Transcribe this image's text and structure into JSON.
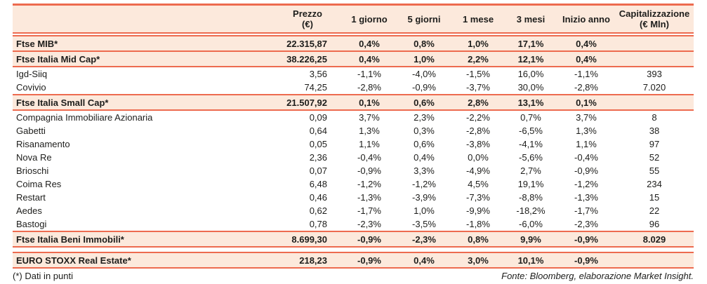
{
  "colors": {
    "accent": "#ed6b4f",
    "band": "#fce9dc",
    "text": "#1d1d1b"
  },
  "table": {
    "columns": [
      {
        "label": ""
      },
      {
        "label": "Prezzo",
        "sub": "(€)"
      },
      {
        "label": "1 giorno"
      },
      {
        "label": "5 giorni"
      },
      {
        "label": "1 mese"
      },
      {
        "label": "3 mesi"
      },
      {
        "label": "Inizio anno"
      },
      {
        "label": "Capitalizzazione",
        "sub": "(€ Mln)"
      }
    ],
    "rows": [
      {
        "type": "index",
        "name": "Ftse MIB*",
        "price": "22.315,87",
        "d1": "0,4%",
        "d5": "0,8%",
        "m1": "1,0%",
        "m3": "17,1%",
        "ytd": "0,4%",
        "cap": ""
      },
      {
        "type": "index",
        "name": "Ftse Italia Mid Cap*",
        "price": "38.226,25",
        "d1": "0,4%",
        "d5": "1,0%",
        "m1": "2,2%",
        "m3": "12,1%",
        "ytd": "0,4%",
        "cap": ""
      },
      {
        "type": "stock",
        "name": "Igd-Siiq",
        "price": "3,56",
        "d1": "-1,1%",
        "d5": "-4,0%",
        "m1": "-1,5%",
        "m3": "16,0%",
        "ytd": "-1,1%",
        "cap": "393"
      },
      {
        "type": "stock",
        "name": "Covivio",
        "price": "74,25",
        "d1": "-2,8%",
        "d5": "-0,9%",
        "m1": "-3,7%",
        "m3": "30,0%",
        "ytd": "-2,8%",
        "cap": "7.020"
      },
      {
        "type": "index",
        "name": "Ftse Italia Small Cap*",
        "price": "21.507,92",
        "d1": "0,1%",
        "d5": "0,6%",
        "m1": "2,8%",
        "m3": "13,1%",
        "ytd": "0,1%",
        "cap": ""
      },
      {
        "type": "stock",
        "name": "Compagnia Immobiliare Azionaria",
        "price": "0,09",
        "d1": "3,7%",
        "d5": "2,3%",
        "m1": "-2,2%",
        "m3": "0,7%",
        "ytd": "3,7%",
        "cap": "8"
      },
      {
        "type": "stock",
        "name": "Gabetti",
        "price": "0,64",
        "d1": "1,3%",
        "d5": "0,3%",
        "m1": "-2,8%",
        "m3": "-6,5%",
        "ytd": "1,3%",
        "cap": "38"
      },
      {
        "type": "stock",
        "name": "Risanamento",
        "price": "0,05",
        "d1": "1,1%",
        "d5": "0,6%",
        "m1": "-3,8%",
        "m3": "-4,1%",
        "ytd": "1,1%",
        "cap": "97"
      },
      {
        "type": "stock",
        "name": "Nova Re",
        "price": "2,36",
        "d1": "-0,4%",
        "d5": "0,4%",
        "m1": "0,0%",
        "m3": "-5,6%",
        "ytd": "-0,4%",
        "cap": "52"
      },
      {
        "type": "stock",
        "name": "Brioschi",
        "price": "0,07",
        "d1": "-0,9%",
        "d5": "3,3%",
        "m1": "-4,9%",
        "m3": "2,7%",
        "ytd": "-0,9%",
        "cap": "55"
      },
      {
        "type": "stock",
        "name": "Coima Res",
        "price": "6,48",
        "d1": "-1,2%",
        "d5": "-1,2%",
        "m1": "4,5%",
        "m3": "19,1%",
        "ytd": "-1,2%",
        "cap": "234"
      },
      {
        "type": "stock",
        "name": "Restart",
        "price": "0,46",
        "d1": "-1,3%",
        "d5": "-3,9%",
        "m1": "-7,3%",
        "m3": "-8,8%",
        "ytd": "-1,3%",
        "cap": "15"
      },
      {
        "type": "stock",
        "name": "Aedes",
        "price": "0,62",
        "d1": "-1,7%",
        "d5": "1,0%",
        "m1": "-9,9%",
        "m3": "-18,2%",
        "ytd": "-1,7%",
        "cap": "22"
      },
      {
        "type": "stock",
        "name": "Bastogi",
        "price": "0,78",
        "d1": "-2,3%",
        "d5": "-3,5%",
        "m1": "-1,8%",
        "m3": "-6,0%",
        "ytd": "-2,3%",
        "cap": "96"
      },
      {
        "type": "index",
        "name": "Ftse Italia Beni Immobili*",
        "price": "8.699,30",
        "d1": "-0,9%",
        "d5": "-2,3%",
        "m1": "0,8%",
        "m3": "9,9%",
        "ytd": "-0,9%",
        "cap": "8.029"
      },
      {
        "type": "spacer"
      },
      {
        "type": "index",
        "name": "EURO STOXX Real Estate*",
        "price": "218,23",
        "d1": "-0,9%",
        "d5": "0,4%",
        "m1": "3,0%",
        "m3": "10,1%",
        "ytd": "-0,9%",
        "cap": ""
      }
    ]
  },
  "footer": {
    "note": "(*) Dati in punti",
    "source": "Fonte: Bloomberg, elaborazione Market Insight."
  },
  "chart_data": {
    "type": "table",
    "columns": [
      "",
      "Prezzo (€)",
      "1 giorno",
      "5 giorni",
      "1 mese",
      "3 mesi",
      "Inizio anno",
      "Capitalizzazione (€ Mln)"
    ],
    "rows": [
      [
        "Ftse MIB*",
        "22.315,87",
        "0,4%",
        "0,8%",
        "1,0%",
        "17,1%",
        "0,4%",
        ""
      ],
      [
        "Ftse Italia Mid Cap*",
        "38.226,25",
        "0,4%",
        "1,0%",
        "2,2%",
        "12,1%",
        "0,4%",
        ""
      ],
      [
        "Igd-Siiq",
        "3,56",
        "-1,1%",
        "-4,0%",
        "-1,5%",
        "16,0%",
        "-1,1%",
        "393"
      ],
      [
        "Covivio",
        "74,25",
        "-2,8%",
        "-0,9%",
        "-3,7%",
        "30,0%",
        "-2,8%",
        "7.020"
      ],
      [
        "Ftse Italia Small Cap*",
        "21.507,92",
        "0,1%",
        "0,6%",
        "2,8%",
        "13,1%",
        "0,1%",
        ""
      ],
      [
        "Compagnia Immobiliare Azionaria",
        "0,09",
        "3,7%",
        "2,3%",
        "-2,2%",
        "0,7%",
        "3,7%",
        "8"
      ],
      [
        "Gabetti",
        "0,64",
        "1,3%",
        "0,3%",
        "-2,8%",
        "-6,5%",
        "1,3%",
        "38"
      ],
      [
        "Risanamento",
        "0,05",
        "1,1%",
        "0,6%",
        "-3,8%",
        "-4,1%",
        "1,1%",
        "97"
      ],
      [
        "Nova Re",
        "2,36",
        "-0,4%",
        "0,4%",
        "0,0%",
        "-5,6%",
        "-0,4%",
        "52"
      ],
      [
        "Brioschi",
        "0,07",
        "-0,9%",
        "3,3%",
        "-4,9%",
        "2,7%",
        "-0,9%",
        "55"
      ],
      [
        "Coima Res",
        "6,48",
        "-1,2%",
        "-1,2%",
        "4,5%",
        "19,1%",
        "-1,2%",
        "234"
      ],
      [
        "Restart",
        "0,46",
        "-1,3%",
        "-3,9%",
        "-7,3%",
        "-8,8%",
        "-1,3%",
        "15"
      ],
      [
        "Aedes",
        "0,62",
        "-1,7%",
        "1,0%",
        "-9,9%",
        "-18,2%",
        "-1,7%",
        "22"
      ],
      [
        "Bastogi",
        "0,78",
        "-2,3%",
        "-3,5%",
        "-1,8%",
        "-6,0%",
        "-2,3%",
        "96"
      ],
      [
        "Ftse Italia Beni Immobili*",
        "8.699,30",
        "-0,9%",
        "-2,3%",
        "0,8%",
        "9,9%",
        "-0,9%",
        "8.029"
      ],
      [
        "EURO STOXX Real Estate*",
        "218,23",
        "-0,9%",
        "0,4%",
        "3,0%",
        "10,1%",
        "-0,9%",
        ""
      ]
    ],
    "footnote": "(*) Dati in punti",
    "source": "Fonte: Bloomberg, elaborazione Market Insight."
  }
}
